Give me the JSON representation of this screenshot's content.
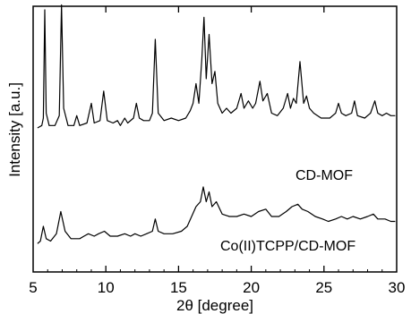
{
  "chart_data": {
    "type": "line",
    "title": "",
    "xlabel": "2θ  [degree]",
    "ylabel": "Intensity [a.u.]",
    "xlim": [
      5,
      30
    ],
    "x_ticks": [
      "5",
      "10",
      "15",
      "20",
      "25",
      "30"
    ],
    "y_ticks": [],
    "grid": false,
    "legend": "none",
    "units": "x in degrees 2θ; y in arbitrary intensity units (upper trace vertically offset)",
    "series": [
      {
        "name": "CD-MOF",
        "color": "#000000",
        "points": [
          [
            5.3,
            0.52
          ],
          [
            5.6,
            0.53
          ],
          [
            5.7,
            0.56
          ],
          [
            5.8,
            1.0
          ],
          [
            5.9,
            0.58
          ],
          [
            6.1,
            0.53
          ],
          [
            6.5,
            0.53
          ],
          [
            6.8,
            0.57
          ],
          [
            6.95,
            1.02
          ],
          [
            7.1,
            0.6
          ],
          [
            7.4,
            0.53
          ],
          [
            7.8,
            0.53
          ],
          [
            8.0,
            0.57
          ],
          [
            8.2,
            0.53
          ],
          [
            8.7,
            0.54
          ],
          [
            9.0,
            0.62
          ],
          [
            9.2,
            0.54
          ],
          [
            9.6,
            0.55
          ],
          [
            9.85,
            0.67
          ],
          [
            10.1,
            0.55
          ],
          [
            10.5,
            0.54
          ],
          [
            10.8,
            0.55
          ],
          [
            11.0,
            0.53
          ],
          [
            11.3,
            0.56
          ],
          [
            11.5,
            0.54
          ],
          [
            11.9,
            0.56
          ],
          [
            12.1,
            0.62
          ],
          [
            12.3,
            0.56
          ],
          [
            12.6,
            0.55
          ],
          [
            13.0,
            0.55
          ],
          [
            13.2,
            0.58
          ],
          [
            13.4,
            0.88
          ],
          [
            13.6,
            0.58
          ],
          [
            14.0,
            0.55
          ],
          [
            14.5,
            0.56
          ],
          [
            15.0,
            0.55
          ],
          [
            15.5,
            0.56
          ],
          [
            15.8,
            0.59
          ],
          [
            16.0,
            0.62
          ],
          [
            16.2,
            0.7
          ],
          [
            16.4,
            0.62
          ],
          [
            16.6,
            0.8
          ],
          [
            16.75,
            0.97
          ],
          [
            16.9,
            0.72
          ],
          [
            17.1,
            0.9
          ],
          [
            17.3,
            0.7
          ],
          [
            17.5,
            0.75
          ],
          [
            17.7,
            0.62
          ],
          [
            18.0,
            0.58
          ],
          [
            18.3,
            0.6
          ],
          [
            18.6,
            0.58
          ],
          [
            19.0,
            0.6
          ],
          [
            19.3,
            0.66
          ],
          [
            19.5,
            0.6
          ],
          [
            19.8,
            0.63
          ],
          [
            20.1,
            0.6
          ],
          [
            20.3,
            0.62
          ],
          [
            20.6,
            0.71
          ],
          [
            20.8,
            0.63
          ],
          [
            21.1,
            0.66
          ],
          [
            21.4,
            0.58
          ],
          [
            21.8,
            0.57
          ],
          [
            22.2,
            0.6
          ],
          [
            22.5,
            0.66
          ],
          [
            22.7,
            0.6
          ],
          [
            22.9,
            0.64
          ],
          [
            23.1,
            0.62
          ],
          [
            23.35,
            0.79
          ],
          [
            23.6,
            0.62
          ],
          [
            23.8,
            0.65
          ],
          [
            24.0,
            0.6
          ],
          [
            24.3,
            0.58
          ],
          [
            24.8,
            0.56
          ],
          [
            25.4,
            0.56
          ],
          [
            25.8,
            0.58
          ],
          [
            26.0,
            0.62
          ],
          [
            26.2,
            0.58
          ],
          [
            26.5,
            0.57
          ],
          [
            26.9,
            0.58
          ],
          [
            27.1,
            0.63
          ],
          [
            27.3,
            0.57
          ],
          [
            27.8,
            0.56
          ],
          [
            28.2,
            0.58
          ],
          [
            28.5,
            0.63
          ],
          [
            28.7,
            0.58
          ],
          [
            29.0,
            0.57
          ],
          [
            29.3,
            0.58
          ],
          [
            29.6,
            0.57
          ],
          [
            29.9,
            0.57
          ]
        ]
      },
      {
        "name": "Co(II)TCPP/CD-MOF",
        "color": "#000000",
        "points": [
          [
            5.3,
            0.05
          ],
          [
            5.5,
            0.06
          ],
          [
            5.7,
            0.12
          ],
          [
            5.9,
            0.07
          ],
          [
            6.2,
            0.06
          ],
          [
            6.6,
            0.09
          ],
          [
            6.9,
            0.18
          ],
          [
            7.2,
            0.1
          ],
          [
            7.6,
            0.07
          ],
          [
            8.2,
            0.07
          ],
          [
            8.5,
            0.08
          ],
          [
            8.8,
            0.09
          ],
          [
            9.2,
            0.08
          ],
          [
            9.5,
            0.09
          ],
          [
            9.9,
            0.1
          ],
          [
            10.3,
            0.08
          ],
          [
            10.8,
            0.08
          ],
          [
            11.3,
            0.09
          ],
          [
            11.7,
            0.08
          ],
          [
            12.0,
            0.09
          ],
          [
            12.4,
            0.08
          ],
          [
            12.8,
            0.09
          ],
          [
            13.2,
            0.1
          ],
          [
            13.4,
            0.15
          ],
          [
            13.6,
            0.1
          ],
          [
            14.0,
            0.09
          ],
          [
            14.6,
            0.09
          ],
          [
            15.2,
            0.1
          ],
          [
            15.6,
            0.12
          ],
          [
            15.9,
            0.16
          ],
          [
            16.2,
            0.2
          ],
          [
            16.5,
            0.22
          ],
          [
            16.7,
            0.28
          ],
          [
            16.9,
            0.22
          ],
          [
            17.1,
            0.26
          ],
          [
            17.3,
            0.2
          ],
          [
            17.6,
            0.22
          ],
          [
            18.0,
            0.17
          ],
          [
            18.5,
            0.16
          ],
          [
            19.0,
            0.16
          ],
          [
            19.5,
            0.17
          ],
          [
            20.0,
            0.16
          ],
          [
            20.5,
            0.18
          ],
          [
            21.0,
            0.19
          ],
          [
            21.4,
            0.16
          ],
          [
            21.9,
            0.16
          ],
          [
            22.4,
            0.18
          ],
          [
            22.8,
            0.2
          ],
          [
            23.2,
            0.21
          ],
          [
            23.5,
            0.19
          ],
          [
            23.9,
            0.18
          ],
          [
            24.4,
            0.16
          ],
          [
            24.9,
            0.15
          ],
          [
            25.3,
            0.14
          ],
          [
            25.8,
            0.15
          ],
          [
            26.2,
            0.16
          ],
          [
            26.6,
            0.15
          ],
          [
            27.0,
            0.16
          ],
          [
            27.5,
            0.15
          ],
          [
            28.0,
            0.16
          ],
          [
            28.4,
            0.17
          ],
          [
            28.7,
            0.15
          ],
          [
            29.2,
            0.15
          ],
          [
            29.6,
            0.14
          ],
          [
            29.9,
            0.14
          ]
        ]
      }
    ],
    "annotations": [
      {
        "text": "CD-MOF",
        "series": "CD-MOF"
      },
      {
        "text": "Co(II)TCPP/CD-MOF",
        "series": "Co(II)TCPP/CD-MOF"
      }
    ]
  }
}
